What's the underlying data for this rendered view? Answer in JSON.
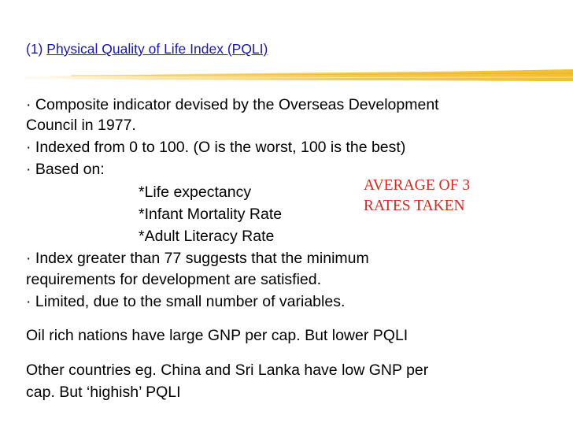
{
  "slide": {
    "title_number": "(1)",
    "title_link": "Physical Quality of Life Index (PQLI)",
    "lines": [
      "· Composite indicator devised by the Overseas Development",
      "Council in 1977.",
      "· Indexed from 0 to 100. (O is the worst, 100 is the best)",
      "· Based on:",
      "*Life expectancy",
      "*Infant Mortality Rate",
      "*Adult Literacy Rate",
      "· Index greater than 77 suggests that the minimum",
      "requirements for development are satisfied.",
      "· Limited, due to the small number of variables.",
      "Oil rich nations have large GNP per cap. But lower PQLI",
      "Other countries eg. China and Sri Lanka have low GNP per",
      "cap. But ‘highish’ PQLI"
    ],
    "note_lines": [
      "AVERAGE OF 3",
      "RATES TAKEN"
    ],
    "colors": {
      "title": "#1a1aa6",
      "note": "#d62a1e",
      "brush": "#f5c94a"
    }
  }
}
